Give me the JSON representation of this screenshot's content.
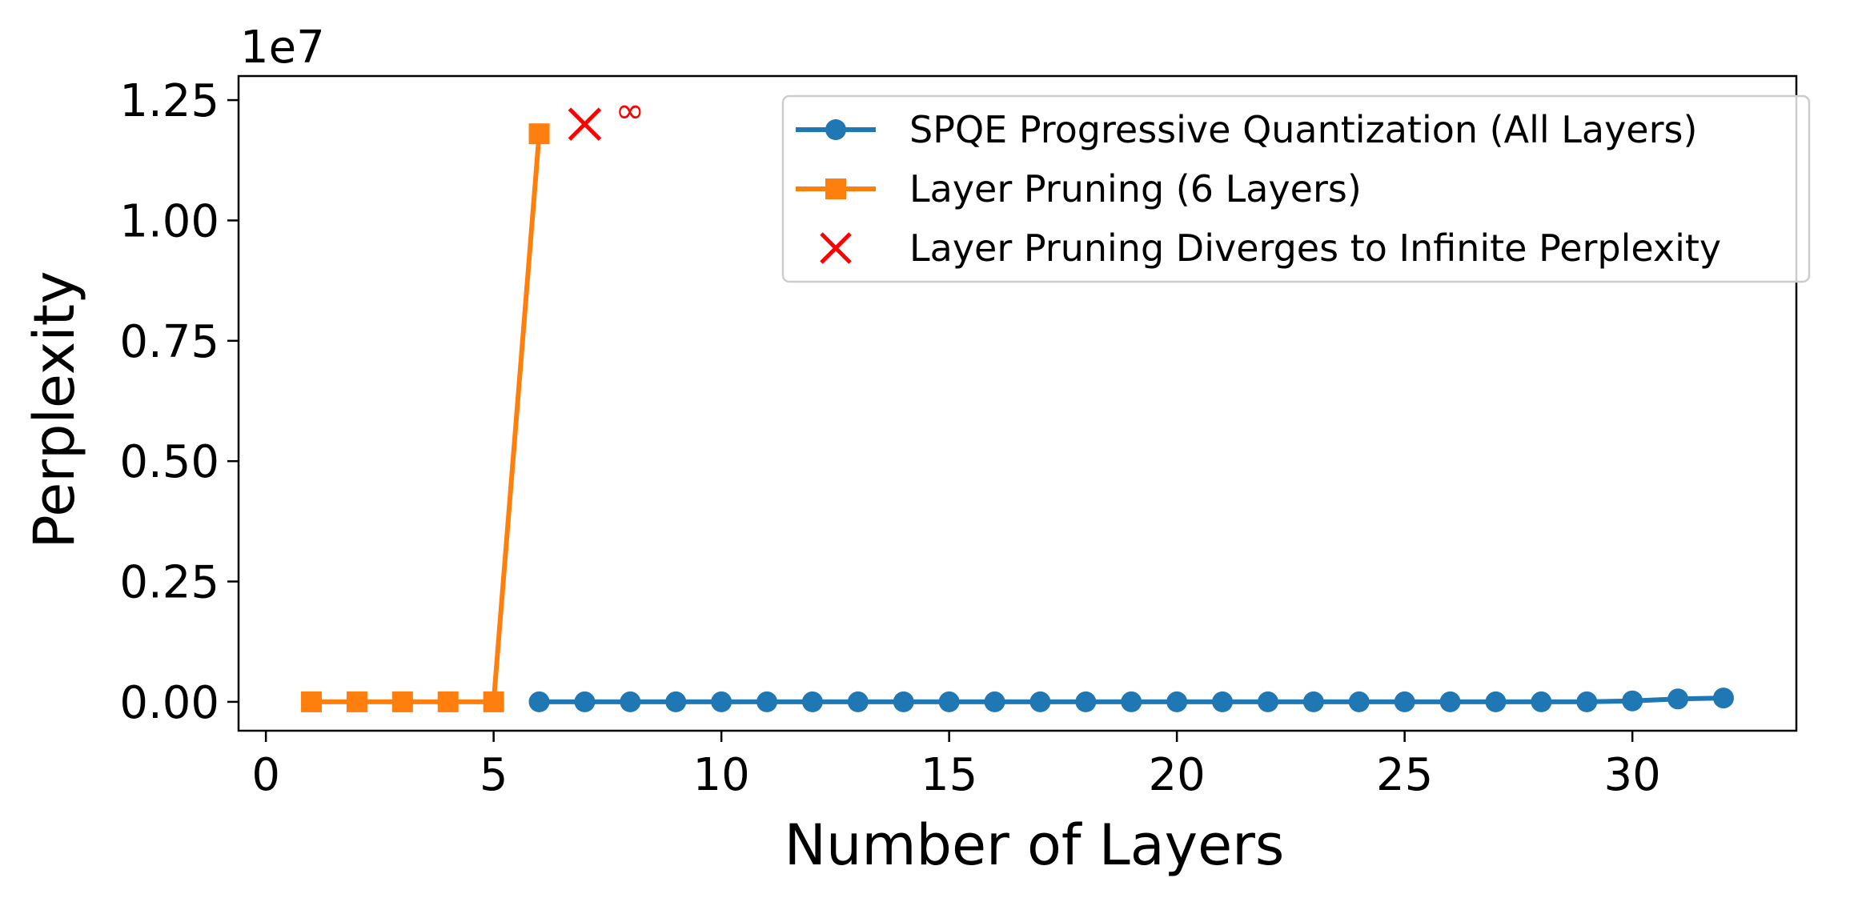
{
  "chart_data": {
    "type": "line",
    "xlabel": "Number of Layers",
    "ylabel": "Perplexity",
    "offset_text": "1e7",
    "xlim": [
      -0.6,
      33.6
    ],
    "ylim": [
      -0.06,
      1.3
    ],
    "y_scale_factor": 10000000,
    "xticks": [
      0,
      5,
      10,
      15,
      20,
      25,
      30
    ],
    "xtick_labels": [
      "0",
      "5",
      "10",
      "15",
      "20",
      "25",
      "30"
    ],
    "yticks": [
      0.0,
      0.25,
      0.5,
      0.75,
      1.0,
      1.25
    ],
    "ytick_labels": [
      "0.00",
      "0.25",
      "0.50",
      "0.75",
      "1.00",
      "1.25"
    ],
    "grid": false,
    "legend_position": "top-right",
    "series": [
      {
        "name": "SPQE Progressive Quantization (All Layers)",
        "marker": "circle",
        "color": "#1f77b4",
        "x": [
          6,
          7,
          8,
          9,
          10,
          11,
          12,
          13,
          14,
          15,
          16,
          17,
          18,
          19,
          20,
          21,
          22,
          23,
          24,
          25,
          26,
          27,
          28,
          29,
          30,
          31,
          32
        ],
        "y": [
          0.0,
          0.0,
          0.0,
          0.0,
          0.0,
          0.0,
          0.0,
          0.0,
          0.0,
          0.0,
          0.0,
          0.0,
          0.0,
          0.0,
          0.0,
          0.0,
          0.0,
          0.0,
          0.0,
          0.0,
          0.0,
          0.0,
          0.0,
          0.0,
          0.002,
          0.006,
          0.008
        ]
      },
      {
        "name": "Layer Pruning (6 Layers)",
        "marker": "square",
        "color": "#ff7f0e",
        "x": [
          1,
          2,
          3,
          4,
          5,
          6
        ],
        "y": [
          0.0,
          0.0,
          0.0,
          0.0,
          0.0,
          1.18
        ]
      },
      {
        "name": "Layer Pruning Diverges to Infinite Perplexity",
        "marker": "x",
        "color": "#ff0000",
        "x": [
          7
        ],
        "y": [
          1.2
        ],
        "annotation": "∞"
      }
    ]
  }
}
